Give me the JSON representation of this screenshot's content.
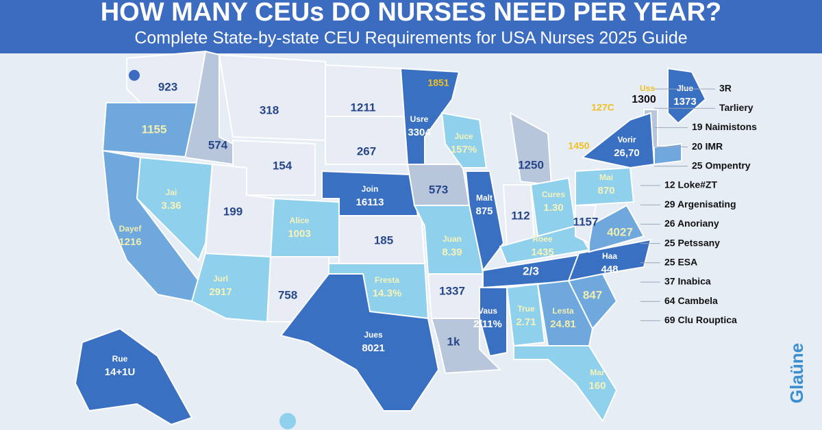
{
  "header": {
    "title": "HOW MANY CEUs DO NURSES NEED PER YEAR?",
    "subtitle": "Complete State-by-state CEU Requirements for USA Nurses 2025 Guide"
  },
  "state_labels": [
    [
      "923"
    ],
    [
      "1155"
    ],
    [
      "Dayef",
      "1216"
    ],
    [
      "574"
    ],
    [
      "Jai",
      "3.36"
    ],
    [
      "318"
    ],
    [
      "154"
    ],
    [
      "199"
    ],
    [
      "Jurl",
      "2917"
    ],
    [
      "Alice",
      "1003"
    ],
    [
      "758"
    ],
    [
      "1211"
    ],
    [
      "267"
    ],
    [
      "Join",
      "16113"
    ],
    [
      "185"
    ],
    [
      "Fresta",
      "14.3%"
    ],
    [
      "Jues",
      "8021"
    ],
    [
      "Usre",
      "3304"
    ],
    [
      "573"
    ],
    [
      "Juan",
      "8.39"
    ],
    [
      "1337"
    ],
    [
      "1k"
    ],
    [
      "Juce",
      "157%"
    ],
    [
      "Malt",
      "875"
    ],
    [
      "112"
    ],
    [
      "1250"
    ],
    [
      "Cures",
      "1.30"
    ],
    [
      "Roee",
      "1435"
    ],
    [
      "2/3"
    ],
    [
      "Vaus",
      "2/11%"
    ],
    [
      "True",
      "2.71"
    ],
    [
      "Lesta",
      "24.81"
    ],
    [
      "Mar",
      "160"
    ],
    [
      "847"
    ],
    [
      "Haa",
      "448"
    ],
    [
      "4027"
    ],
    [
      "1157"
    ],
    [
      "Mai",
      "870"
    ],
    [
      "Vorir",
      "26,70"
    ],
    [
      "Jlue",
      "1373"
    ],
    [
      "Rue",
      "14+1U"
    ]
  ],
  "callouts": [
    "1851",
    "Uss",
    "1300",
    "127C",
    "1450"
  ],
  "legend": [
    "3R",
    "Tarliery",
    "19 Naimistons",
    "20 IMR",
    "25 Ompentry",
    "12 Loke#ZT",
    "29 Argenisating",
    "26 Anoriany",
    "25 Petssany",
    "25 ESA",
    "37 Inabica",
    "64 Cambela",
    "69 Clu Rouptica"
  ],
  "logo": "Glaüne"
}
